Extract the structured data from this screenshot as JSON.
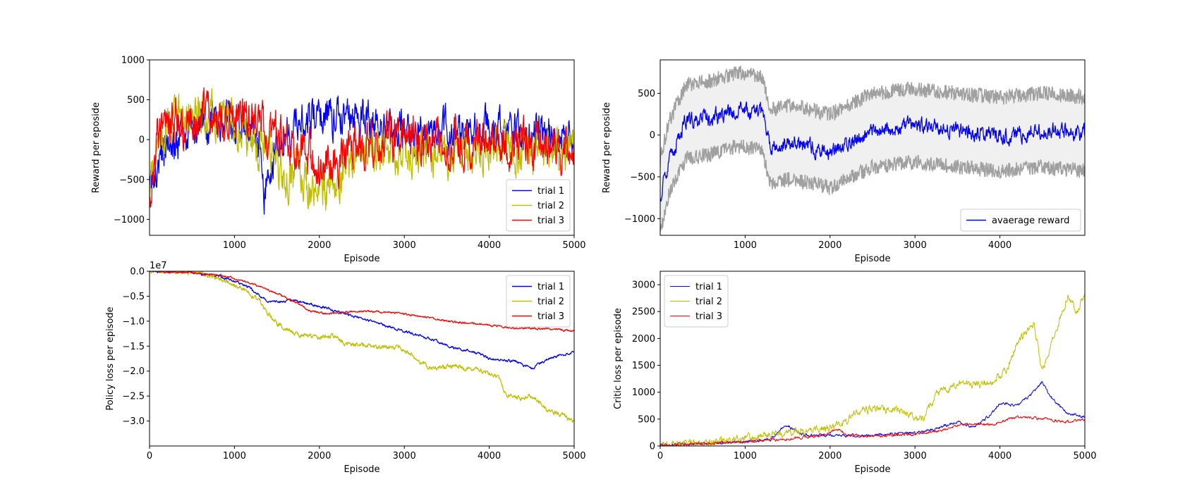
{
  "chart_data": [
    {
      "type": "line",
      "xlabel": "Episode",
      "ylabel": "Reward per eposide",
      "xlim": [
        0,
        5000
      ],
      "ylim": [
        -1200,
        1000
      ],
      "xticks": [
        1000,
        2000,
        3000,
        4000,
        5000
      ],
      "yticks": [
        -1000,
        -500,
        0,
        500,
        1000
      ],
      "legend": "lower-right",
      "series": [
        {
          "name": "trial 1",
          "color": "#0000ff",
          "x": [
            0,
            100,
            300,
            500,
            700,
            900,
            1100,
            1300,
            1350,
            1450,
            1600,
            1800,
            2000,
            2200,
            2500,
            2800,
            3000,
            3300,
            3600,
            4000,
            4300,
            4600,
            5000
          ],
          "y": [
            -700,
            -250,
            0,
            150,
            200,
            250,
            150,
            0,
            -600,
            -200,
            100,
            250,
            300,
            300,
            250,
            150,
            100,
            100,
            100,
            150,
            100,
            100,
            0
          ],
          "noise": 190
        },
        {
          "name": "trial 2",
          "color": "#bfbf00",
          "x": [
            0,
            100,
            300,
            500,
            700,
            900,
            1100,
            1300,
            1500,
            1700,
            1900,
            2100,
            2200,
            2400,
            2700,
            3000,
            3300,
            3600,
            4000,
            4300,
            4600,
            5000
          ],
          "y": [
            -800,
            0,
            300,
            350,
            300,
            250,
            100,
            0,
            -300,
            -500,
            -550,
            -600,
            -550,
            -300,
            -100,
            -150,
            -200,
            -200,
            -150,
            -100,
            -150,
            -100
          ],
          "noise": 210
        },
        {
          "name": "trial 3",
          "color": "#ff0000",
          "x": [
            0,
            100,
            300,
            500,
            700,
            900,
            1100,
            1300,
            1500,
            1700,
            2000,
            2200,
            2500,
            2800,
            3000,
            3300,
            3600,
            4000,
            4300,
            4600,
            5000
          ],
          "y": [
            -800,
            50,
            250,
            250,
            300,
            350,
            250,
            150,
            50,
            -50,
            -300,
            -250,
            -100,
            0,
            50,
            0,
            0,
            -50,
            -50,
            -50,
            -100
          ],
          "noise": 210
        }
      ]
    },
    {
      "type": "line",
      "xlabel": "Episode",
      "ylabel": "Reward per eposide",
      "xlim": [
        0,
        5000
      ],
      "ylim": [
        -1200,
        900
      ],
      "xticks": [
        1000,
        2000,
        3000,
        4000
      ],
      "yticks": [
        -1000,
        -500,
        0,
        500
      ],
      "legend": "lower-right",
      "series": [
        {
          "name": "avaerage reward",
          "color": "#0000ff",
          "x": [
            0,
            100,
            300,
            600,
            900,
            1200,
            1300,
            1500,
            1800,
            2000,
            2200,
            2500,
            3000,
            3500,
            4000,
            4500,
            5000
          ],
          "y": [
            -750,
            -300,
            150,
            200,
            300,
            250,
            -150,
            -100,
            -150,
            -200,
            -100,
            50,
            100,
            50,
            0,
            50,
            0
          ],
          "noise": 75
        }
      ],
      "band": {
        "color": "#a0a0a0",
        "fill": "#f0f0f0",
        "upper_offset": 450,
        "lower_offset": -430,
        "noise": 90
      }
    },
    {
      "type": "line",
      "xlabel": "Episode",
      "ylabel": "Policy loss per episode",
      "offset_text": "1e7",
      "xlim": [
        0,
        5000
      ],
      "ylim": [
        -3.5,
        0
      ],
      "xticks": [
        0,
        1000,
        2000,
        3000,
        4000,
        5000
      ],
      "yticks": [
        0.0,
        -0.5,
        -1.0,
        -1.5,
        -2.0,
        -2.5,
        -3.0
      ],
      "ytick_labels": [
        "0.0",
        "−0.5",
        "−1.0",
        "−1.5",
        "−2.0",
        "−2.5",
        "−3.0"
      ],
      "legend": "top-right",
      "series": [
        {
          "name": "trial 1",
          "color": "#0000ff",
          "x": [
            0,
            500,
            800,
            1000,
            1200,
            1300,
            1400,
            1500,
            1600,
            1700,
            2000,
            2200,
            2500,
            2800,
            3000,
            3300,
            3600,
            3800,
            4000,
            4300,
            4500,
            4700,
            5000
          ],
          "y": [
            0,
            -0.02,
            -0.1,
            -0.2,
            -0.35,
            -0.5,
            -0.6,
            -0.62,
            -0.6,
            -0.58,
            -0.7,
            -0.8,
            -0.95,
            -1.1,
            -1.2,
            -1.35,
            -1.55,
            -1.6,
            -1.75,
            -1.8,
            -1.95,
            -1.75,
            -1.62
          ],
          "noise": 0.02
        },
        {
          "name": "trial 2",
          "color": "#bfbf00",
          "x": [
            0,
            500,
            700,
            900,
            1100,
            1300,
            1400,
            1500,
            1600,
            1800,
            2000,
            2200,
            2300,
            2600,
            3000,
            3100,
            3300,
            3600,
            3900,
            4100,
            4200,
            4400,
            4500,
            4700,
            4900,
            5000
          ],
          "y": [
            0,
            -0.02,
            -0.08,
            -0.2,
            -0.35,
            -0.6,
            -0.85,
            -1.05,
            -1.15,
            -1.3,
            -1.32,
            -1.3,
            -1.45,
            -1.5,
            -1.55,
            -1.7,
            -1.95,
            -1.9,
            -2.0,
            -2.1,
            -2.5,
            -2.55,
            -2.5,
            -2.8,
            -2.9,
            -3.05
          ],
          "noise": 0.035
        },
        {
          "name": "trial 3",
          "color": "#ff0000",
          "x": [
            0,
            500,
            900,
            1200,
            1500,
            1700,
            1900,
            2100,
            2300,
            2600,
            2900,
            3200,
            3500,
            3800,
            4100,
            4400,
            4700,
            5000
          ],
          "y": [
            0,
            -0.03,
            -0.1,
            -0.25,
            -0.45,
            -0.6,
            -0.8,
            -0.85,
            -0.82,
            -0.8,
            -0.83,
            -0.9,
            -1.0,
            -1.05,
            -1.1,
            -1.15,
            -1.15,
            -1.2
          ],
          "noise": 0.015
        }
      ]
    },
    {
      "type": "line",
      "xlabel": "Episode",
      "ylabel": "Critic loss per episode",
      "xlim": [
        0,
        5000
      ],
      "ylim": [
        0,
        3250
      ],
      "xticks": [
        0,
        1000,
        2000,
        3000,
        4000,
        5000
      ],
      "yticks": [
        0,
        500,
        1000,
        1500,
        2000,
        2500,
        3000
      ],
      "legend": "top-left",
      "series": [
        {
          "name": "trial 1",
          "color": "#0000ff",
          "x": [
            0,
            500,
            1000,
            1300,
            1400,
            1500,
            1600,
            1700,
            2000,
            2500,
            3000,
            3200,
            3500,
            3700,
            3900,
            4000,
            4200,
            4400,
            4500,
            4600,
            4800,
            5000
          ],
          "y": [
            20,
            40,
            80,
            120,
            300,
            380,
            280,
            200,
            200,
            200,
            250,
            300,
            450,
            350,
            600,
            800,
            750,
            1000,
            1200,
            900,
            600,
            550
          ],
          "noise": 20
        },
        {
          "name": "trial 2",
          "color": "#bfbf00",
          "x": [
            0,
            500,
            1000,
            1500,
            2000,
            2200,
            2300,
            2500,
            2800,
            3000,
            3100,
            3300,
            3600,
            3900,
            4100,
            4200,
            4300,
            4400,
            4500,
            4700,
            4800,
            4900,
            5000
          ],
          "y": [
            20,
            50,
            150,
            250,
            350,
            450,
            650,
            700,
            650,
            550,
            500,
            1050,
            1150,
            1150,
            1450,
            1900,
            2100,
            2300,
            1400,
            2350,
            2800,
            2500,
            2800
          ],
          "noise": 55
        },
        {
          "name": "trial 3",
          "color": "#ff0000",
          "x": [
            0,
            500,
            1000,
            1500,
            1900,
            2100,
            2200,
            2500,
            3000,
            3300,
            3600,
            3900,
            4100,
            4300,
            4500,
            4800,
            5000
          ],
          "y": [
            20,
            40,
            80,
            120,
            200,
            300,
            200,
            180,
            220,
            280,
            420,
            400,
            500,
            550,
            500,
            450,
            500
          ],
          "noise": 20
        }
      ]
    }
  ]
}
